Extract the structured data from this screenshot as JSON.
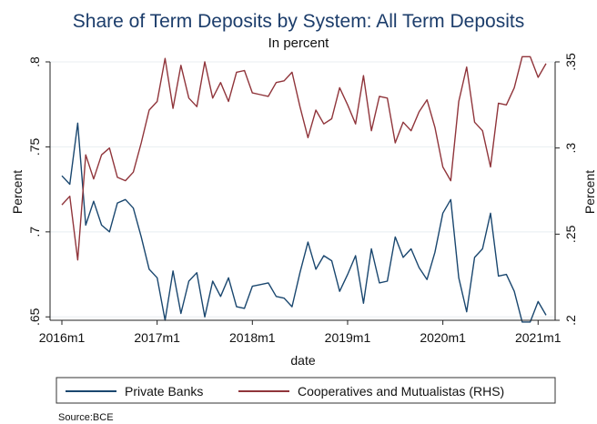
{
  "chart_data": {
    "type": "line",
    "title": "Share of Term Deposits by System: All Term Deposits",
    "subtitle": "In percent",
    "xlabel": "date",
    "ylabel_left": "Percent",
    "ylabel_right": "Percent",
    "note": "Source:BCE",
    "x_ticks": [
      "2016m1",
      "2017m1",
      "2018m1",
      "2019m1",
      "2020m1",
      "2021m1"
    ],
    "y_left_ticks": [
      ".65",
      ".7",
      ".75",
      ".8"
    ],
    "y_right_ticks": [
      ".2",
      ".25",
      ".3",
      ".35"
    ],
    "ylim_left": [
      0.648,
      0.8
    ],
    "ylim_right": [
      0.2,
      0.35
    ],
    "grid": true,
    "legend_position": "bottom",
    "colors": {
      "private": "#1a476f",
      "coop": "#90353b",
      "grid": "#e8eef1",
      "title": "#1c3d6b"
    },
    "series": [
      {
        "name": "Private Banks",
        "axis": "left",
        "values": [
          0.733,
          0.728,
          0.764,
          0.704,
          0.718,
          0.704,
          0.7,
          0.717,
          0.719,
          0.714,
          0.697,
          0.678,
          0.673,
          0.648,
          0.677,
          0.652,
          0.671,
          0.676,
          0.65,
          0.671,
          0.662,
          0.673,
          0.656,
          0.655,
          0.668,
          0.669,
          0.67,
          0.662,
          0.661,
          0.656,
          0.676,
          0.694,
          0.678,
          0.686,
          0.683,
          0.665,
          0.675,
          0.686,
          0.658,
          0.69,
          0.67,
          0.671,
          0.697,
          0.685,
          0.69,
          0.679,
          0.672,
          0.688,
          0.711,
          0.719,
          0.673,
          0.653,
          0.685,
          0.69,
          0.711,
          0.674,
          0.675,
          0.665,
          0.647,
          0.647,
          0.659,
          0.651
        ]
      },
      {
        "name": "Cooperatives and Mutualistas (RHS)",
        "axis": "right",
        "values": [
          0.267,
          0.272,
          0.235,
          0.296,
          0.282,
          0.296,
          0.3,
          0.283,
          0.281,
          0.286,
          0.303,
          0.322,
          0.327,
          0.352,
          0.323,
          0.348,
          0.329,
          0.324,
          0.35,
          0.329,
          0.338,
          0.327,
          0.344,
          0.345,
          0.332,
          0.331,
          0.33,
          0.338,
          0.339,
          0.344,
          0.324,
          0.306,
          0.322,
          0.314,
          0.317,
          0.335,
          0.325,
          0.314,
          0.342,
          0.31,
          0.33,
          0.329,
          0.303,
          0.315,
          0.31,
          0.321,
          0.328,
          0.312,
          0.289,
          0.281,
          0.327,
          0.347,
          0.315,
          0.31,
          0.289,
          0.326,
          0.325,
          0.335,
          0.353,
          0.353,
          0.341,
          0.349
        ]
      }
    ]
  }
}
